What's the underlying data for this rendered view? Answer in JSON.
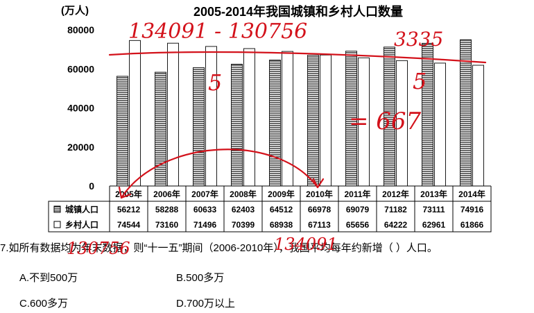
{
  "chart_data": {
    "type": "bar",
    "title": "2005-2014年我国城镇和乡村人口数量",
    "ylabel": "(万人)",
    "ylim": [
      0,
      80000
    ],
    "yticks": [
      0,
      20000,
      40000,
      60000,
      80000
    ],
    "categories": [
      "2005年",
      "2006年",
      "2007年",
      "2008年",
      "2009年",
      "2010年",
      "2011年",
      "2012年",
      "2013年",
      "2014年"
    ],
    "series": [
      {
        "name": "城镇人口",
        "values": [
          56212,
          58288,
          60633,
          62403,
          64512,
          66978,
          69079,
          71182,
          73111,
          74916
        ],
        "pattern": "horizontal-hatch"
      },
      {
        "name": "乡村人口",
        "values": [
          74544,
          73160,
          71496,
          70399,
          68938,
          67113,
          65656,
          64222,
          62961,
          61866
        ],
        "pattern": "white"
      }
    ],
    "legend": "table-below",
    "grid": false
  },
  "question": {
    "text": "7.如所有数据均为年末数据，则“十一五”期间（2006-2010年），我国平均每年约新增（ ）人口。",
    "options": [
      {
        "label": "A.不到500万"
      },
      {
        "label": "B.500多万"
      },
      {
        "label": "C.600多万"
      },
      {
        "label": "D.700万以上"
      }
    ]
  },
  "annotations": {
    "handwritten": [
      "134091 - 130756",
      "3335",
      "5",
      "5",
      "= 667",
      "134091",
      "130756"
    ],
    "ink_color": "#d3121b"
  }
}
